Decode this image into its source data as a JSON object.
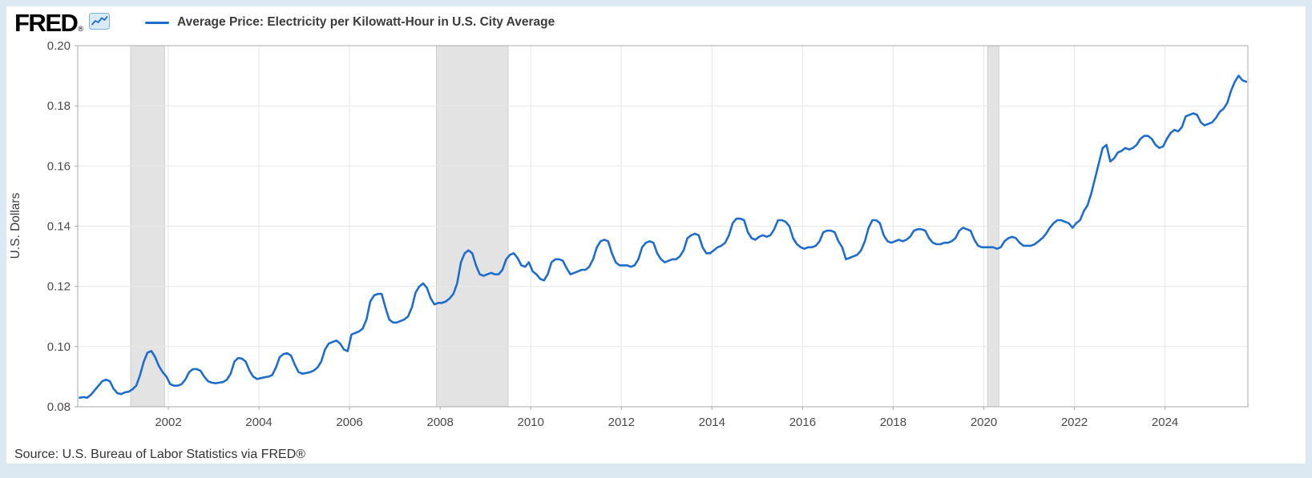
{
  "header": {
    "logo_text": "FRED",
    "logo_registered": "®",
    "legend": {
      "label": "Average Price: Electricity per Kilowatt-Hour in U.S. City Average"
    }
  },
  "footer": {
    "source": "Source: U.S. Bureau of Labor Statistics via FRED®"
  },
  "colors": {
    "page_background": "#dce8f2",
    "panel_background": "#ffffff",
    "line": "#1f6dcb",
    "recession_band": "#e3e3e3",
    "band_edge": "#c9c9c9",
    "grid": "#e7e7e7",
    "axis": "#a9a9a9",
    "tick_text": "#4a4a4a"
  },
  "chart_data": {
    "type": "line",
    "title": "Average Price: Electricity per Kilowatt-Hour in U.S. City Average",
    "ylabel": "U.S. Dollars",
    "xlabel": "",
    "unit": "U.S. Dollars",
    "frequency": "monthly",
    "legend_position": "top",
    "grid": true,
    "start_year": 2000,
    "start_month": 1,
    "x_domain": [
      2000,
      2025.83
    ],
    "ylim": [
      0.08,
      0.2
    ],
    "y_ticks": [
      0.08,
      0.1,
      0.12,
      0.14,
      0.16,
      0.18,
      0.2
    ],
    "x_ticks": [
      2002,
      2004,
      2006,
      2008,
      2010,
      2012,
      2014,
      2016,
      2018,
      2020,
      2022,
      2024
    ],
    "recession_bands": [
      {
        "start": 2001.167,
        "end": 2001.917
      },
      {
        "start": 2007.917,
        "end": 2009.5
      },
      {
        "start": 2020.083,
        "end": 2020.333
      }
    ],
    "line_color": "#1f6dcb",
    "band_color": "#e3e3e3",
    "band_edge_color": "#c9c9c9",
    "grid_color": "#e7e7e7",
    "axis_color": "#a9a9a9",
    "values": [
      0.083,
      0.0832,
      0.083,
      0.084,
      0.0855,
      0.087,
      0.0885,
      0.089,
      0.0885,
      0.086,
      0.0845,
      0.0842,
      0.0848,
      0.085,
      0.0858,
      0.087,
      0.0905,
      0.095,
      0.098,
      0.0985,
      0.0965,
      0.0935,
      0.0915,
      0.09,
      0.0875,
      0.087,
      0.087,
      0.0875,
      0.089,
      0.0915,
      0.0925,
      0.0925,
      0.092,
      0.09,
      0.0885,
      0.088,
      0.0878,
      0.088,
      0.0882,
      0.089,
      0.091,
      0.095,
      0.0962,
      0.096,
      0.095,
      0.092,
      0.09,
      0.0892,
      0.0895,
      0.0898,
      0.09,
      0.0905,
      0.093,
      0.0965,
      0.0975,
      0.0978,
      0.097,
      0.094,
      0.0915,
      0.091,
      0.0912,
      0.0915,
      0.092,
      0.093,
      0.095,
      0.099,
      0.101,
      0.1015,
      0.102,
      0.101,
      0.099,
      0.0985,
      0.104,
      0.1045,
      0.105,
      0.106,
      0.109,
      0.115,
      0.117,
      0.1175,
      0.1175,
      0.113,
      0.109,
      0.108,
      0.108,
      0.1085,
      0.109,
      0.11,
      0.113,
      0.118,
      0.12,
      0.121,
      0.1195,
      0.116,
      0.114,
      0.1145,
      0.1145,
      0.115,
      0.116,
      0.1175,
      0.121,
      0.128,
      0.131,
      0.132,
      0.131,
      0.127,
      0.124,
      0.1235,
      0.124,
      0.1245,
      0.124,
      0.124,
      0.1255,
      0.129,
      0.1305,
      0.131,
      0.1295,
      0.127,
      0.1265,
      0.128,
      0.125,
      0.124,
      0.1225,
      0.122,
      0.124,
      0.128,
      0.129,
      0.129,
      0.1285,
      0.126,
      0.124,
      0.1245,
      0.125,
      0.1255,
      0.1255,
      0.1265,
      0.129,
      0.133,
      0.135,
      0.1355,
      0.135,
      0.131,
      0.128,
      0.127,
      0.127,
      0.127,
      0.1265,
      0.127,
      0.129,
      0.133,
      0.1345,
      0.135,
      0.1345,
      0.131,
      0.129,
      0.128,
      0.1285,
      0.129,
      0.129,
      0.13,
      0.132,
      0.136,
      0.137,
      0.1375,
      0.137,
      0.133,
      0.131,
      0.131,
      0.132,
      0.133,
      0.1335,
      0.1345,
      0.137,
      0.141,
      0.1425,
      0.1425,
      0.142,
      0.138,
      0.136,
      0.1355,
      0.1365,
      0.137,
      0.1365,
      0.137,
      0.139,
      0.142,
      0.142,
      0.1415,
      0.14,
      0.136,
      0.134,
      0.133,
      0.1325,
      0.133,
      0.133,
      0.1335,
      0.135,
      0.138,
      0.1385,
      0.1385,
      0.138,
      0.135,
      0.133,
      0.129,
      0.1295,
      0.13,
      0.1305,
      0.132,
      0.135,
      0.1395,
      0.142,
      0.142,
      0.141,
      0.137,
      0.135,
      0.1345,
      0.135,
      0.1355,
      0.135,
      0.1355,
      0.1365,
      0.1385,
      0.139,
      0.139,
      0.1385,
      0.136,
      0.1345,
      0.134,
      0.134,
      0.1345,
      0.1345,
      0.135,
      0.136,
      0.1385,
      0.1395,
      0.139,
      0.1385,
      0.1355,
      0.1335,
      0.133,
      0.133,
      0.133,
      0.133,
      0.1325,
      0.133,
      0.135,
      0.136,
      0.1365,
      0.136,
      0.1345,
      0.1335,
      0.1335,
      0.1335,
      0.134,
      0.135,
      0.136,
      0.1375,
      0.1395,
      0.141,
      0.142,
      0.142,
      0.1415,
      0.141,
      0.1395,
      0.141,
      0.142,
      0.145,
      0.147,
      0.151,
      0.156,
      0.161,
      0.166,
      0.167,
      0.1615,
      0.1625,
      0.1645,
      0.165,
      0.166,
      0.1655,
      0.166,
      0.167,
      0.169,
      0.17,
      0.17,
      0.169,
      0.167,
      0.166,
      0.1665,
      0.169,
      0.171,
      0.172,
      0.1715,
      0.173,
      0.1765,
      0.177,
      0.1775,
      0.177,
      0.1745,
      0.1735,
      0.174,
      0.1745,
      0.176,
      0.178,
      0.179,
      0.181,
      0.185,
      0.188,
      0.19,
      0.1885,
      0.188
    ]
  }
}
